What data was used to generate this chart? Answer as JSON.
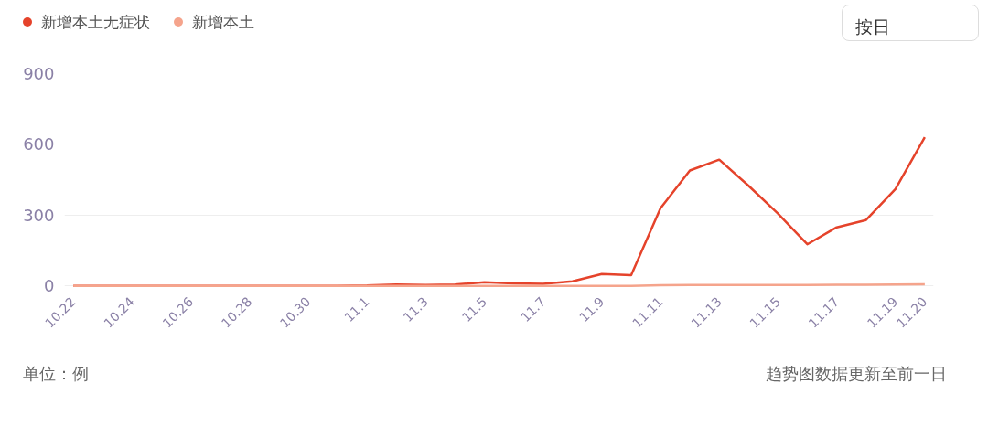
{
  "chart_data": {
    "type": "line",
    "categories": [
      "10.22",
      null,
      "10.24",
      null,
      "10.26",
      null,
      "10.28",
      null,
      "10.30",
      null,
      "11.1",
      null,
      "11.3",
      null,
      "11.5",
      null,
      "11.7",
      null,
      "11.9",
      null,
      "11.11",
      null,
      "11.13",
      null,
      "11.15",
      null,
      "11.17",
      null,
      "11.19",
      "11.20"
    ],
    "series": [
      {
        "name": "新增本土无症状",
        "color": "#e5432b",
        "values": [
          0,
          0,
          0,
          0,
          0,
          0,
          0,
          0,
          0,
          0,
          1,
          5,
          3,
          5,
          15,
          10,
          8,
          19,
          50,
          45,
          329,
          489,
          535,
          424,
          306,
          176,
          248,
          279,
          410,
          630
        ]
      },
      {
        "name": "新增本土",
        "color": "#f5a48c",
        "values": [
          0,
          0,
          0,
          0,
          0,
          0,
          0,
          0,
          0,
          0,
          0,
          0,
          0,
          0,
          0,
          0,
          0,
          0,
          0,
          0,
          2,
          3,
          3,
          3,
          3,
          3,
          4,
          4,
          5,
          6
        ]
      }
    ],
    "ylim": [
      0,
      900
    ],
    "yticks": [
      0,
      300,
      600,
      900
    ],
    "grid": "y",
    "legend": "top left",
    "marker": "none",
    "line_style": "solid",
    "annotations": [
      "按日",
      "单位：例",
      "趋势图数据更新至前一日"
    ]
  }
}
